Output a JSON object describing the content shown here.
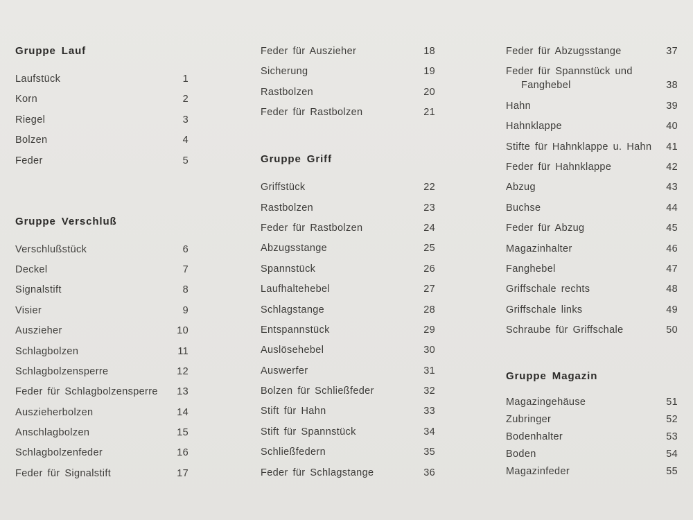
{
  "page": {
    "background": "#e6e5e2",
    "item_color": "#3e3d3a",
    "heading_color": "#2b2a28"
  },
  "columns": [
    {
      "groups": [
        {
          "heading": "Gruppe Lauf",
          "items": [
            {
              "name": "Laufstück",
              "number": "1"
            },
            {
              "name": "Korn",
              "number": "2"
            },
            {
              "name": "Riegel",
              "number": "3"
            },
            {
              "name": "Bolzen",
              "number": "4"
            },
            {
              "name": "Feder",
              "number": "5"
            }
          ]
        },
        {
          "heading": "Gruppe Verschluß",
          "items": [
            {
              "name": "Verschlußstück",
              "number": "6"
            },
            {
              "name": "Deckel",
              "number": "7"
            },
            {
              "name": "Signalstift",
              "number": "8"
            },
            {
              "name": "Visier",
              "number": "9"
            },
            {
              "name": "Auszieher",
              "number": "10"
            },
            {
              "name": "Schlagbolzen",
              "number": "11"
            },
            {
              "name": "Schlagbolzensperre",
              "number": "12"
            },
            {
              "name": "Feder für Schlagbolzensperre",
              "number": "13"
            },
            {
              "name": "Auszieherbolzen",
              "number": "14"
            },
            {
              "name": "Anschlagbolzen",
              "number": "15"
            },
            {
              "name": "Schlagbolzenfeder",
              "number": "16"
            },
            {
              "name": "Feder für Signalstift",
              "number": "17"
            }
          ]
        }
      ]
    },
    {
      "groups": [
        {
          "heading": "",
          "items": [
            {
              "name": "Feder für Auszieher",
              "number": "18"
            },
            {
              "name": "Sicherung",
              "number": "19"
            },
            {
              "name": "Rastbolzen",
              "number": "20"
            },
            {
              "name": "Feder für Rastbolzen",
              "number": "21"
            }
          ]
        },
        {
          "heading": "Gruppe Griff",
          "items": [
            {
              "name": "Griffstück",
              "number": "22"
            },
            {
              "name": "Rastbolzen",
              "number": "23"
            },
            {
              "name": "Feder für Rastbolzen",
              "number": "24"
            },
            {
              "name": "Abzugsstange",
              "number": "25"
            },
            {
              "name": "Spannstück",
              "number": "26"
            },
            {
              "name": "Laufhaltehebel",
              "number": "27"
            },
            {
              "name": "Schlagstange",
              "number": "28"
            },
            {
              "name": "Entspannstück",
              "number": "29"
            },
            {
              "name": "Auslösehebel",
              "number": "30"
            },
            {
              "name": "Auswerfer",
              "number": "31"
            },
            {
              "name": "Bolzen für Schließfeder",
              "number": "32"
            },
            {
              "name": "Stift für Hahn",
              "number": "33"
            },
            {
              "name": "Stift für Spannstück",
              "number": "34"
            },
            {
              "name": "Schließfedern",
              "number": "35"
            },
            {
              "name": "Feder für Schlagstange",
              "number": "36"
            }
          ]
        }
      ]
    },
    {
      "groups": [
        {
          "heading": "",
          "items": [
            {
              "name": "Feder für Abzugsstange",
              "number": "37"
            },
            {
              "name": "Feder für Spannstück und\nFanghebel",
              "number": "38"
            },
            {
              "name": "Hahn",
              "number": "39"
            },
            {
              "name": "Hahnklappe",
              "number": "40"
            },
            {
              "name": "Stifte für Hahnklappe u. Hahn",
              "number": "41"
            },
            {
              "name": "Feder für Hahnklappe",
              "number": "42"
            },
            {
              "name": "Abzug",
              "number": "43"
            },
            {
              "name": "Buchse",
              "number": "44"
            },
            {
              "name": "Feder für Abzug",
              "number": "45"
            },
            {
              "name": "Magazinhalter",
              "number": "46"
            },
            {
              "name": "Fanghebel",
              "number": "47"
            },
            {
              "name": "Griffschale rechts",
              "number": "48"
            },
            {
              "name": "Griffschale links",
              "number": "49"
            },
            {
              "name": "Schraube für Griffschale",
              "number": "50"
            }
          ]
        },
        {
          "heading": "Gruppe Magazin",
          "compact": true,
          "items": [
            {
              "name": "Magazingehäuse",
              "number": "51"
            },
            {
              "name": "Zubringer",
              "number": "52"
            },
            {
              "name": "Bodenhalter",
              "number": "53"
            },
            {
              "name": "Boden",
              "number": "54"
            },
            {
              "name": "Magazinfeder",
              "number": "55"
            }
          ]
        }
      ]
    }
  ]
}
